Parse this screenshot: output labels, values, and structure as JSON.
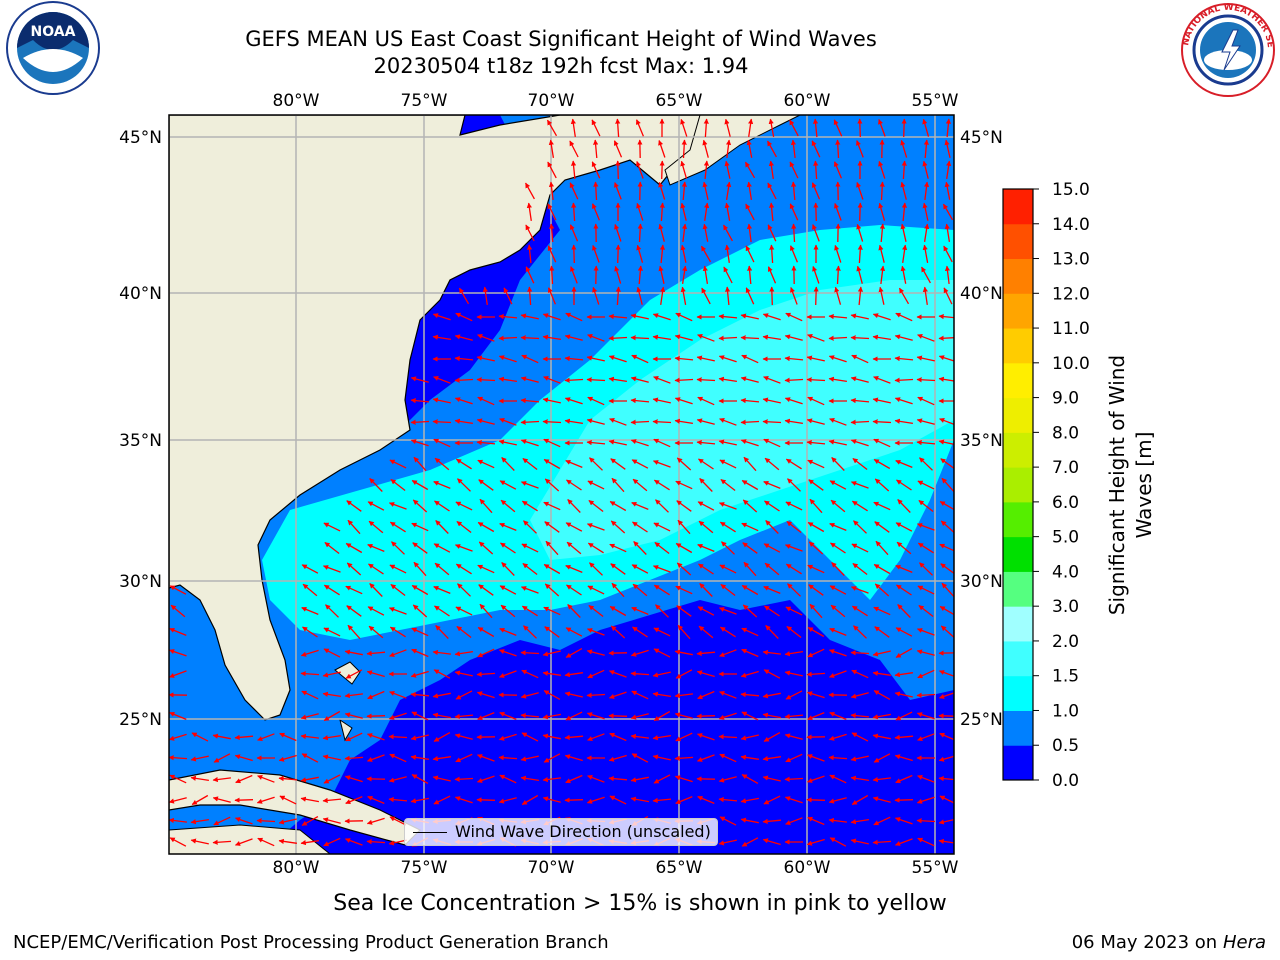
{
  "title": {
    "line1": "GEFS MEAN US East Coast Significant Height of Wind Waves",
    "line2": "20230504 t18z 192h fcst   Max: 1.94"
  },
  "logos": {
    "left": "noaa-logo",
    "right": "nws-logo",
    "left_text": "NOAA",
    "right_text": "NATIONAL WEATHER SERVICE"
  },
  "map": {
    "lon_ticks_top": [
      "80°W",
      "75°W",
      "70°W",
      "65°W",
      "60°W",
      "55°W"
    ],
    "lon_ticks_bottom": [
      "80°W",
      "75°W",
      "70°W",
      "65°W",
      "60°W",
      "55°W"
    ],
    "lat_ticks_left": [
      "45°N",
      "40°N",
      "35°N",
      "30°N",
      "25°N"
    ],
    "lat_ticks_right": [
      "45°N",
      "40°N",
      "35°N",
      "30°N",
      "25°N"
    ],
    "land_color": "#efeedb",
    "vector_color": "#ff0000"
  },
  "colorbar": {
    "label_line1": "Significant Height of Wind",
    "label_line2": "Waves [m]",
    "ticks": [
      "0.0",
      "0.5",
      "1.0",
      "1.5",
      "2.0",
      "3.0",
      "4.0",
      "5.0",
      "6.0",
      "7.0",
      "8.0",
      "9.0",
      "10.0",
      "11.0",
      "12.0",
      "13.0",
      "14.0",
      "15.0"
    ],
    "colors": [
      "#0000ff",
      "#0080ff",
      "#00ffff",
      "#40ffff",
      "#a0ffff",
      "#55ff80",
      "#00e000",
      "#55ee00",
      "#aaee00",
      "#ccee00",
      "#eeee00",
      "#ffee00",
      "#ffcc00",
      "#ffa500",
      "#ff8000",
      "#ff5000",
      "#ff2000"
    ]
  },
  "legend": {
    "label": "Wind Wave Direction (unscaled)"
  },
  "footnote": "Sea Ice Concentration > 15% is shown in pink to yellow",
  "credit_left": "NCEP/EMC/Verification Post Processing Product Generation Branch",
  "credit_date": "06 May 2023 on",
  "credit_machine": "Hera"
}
